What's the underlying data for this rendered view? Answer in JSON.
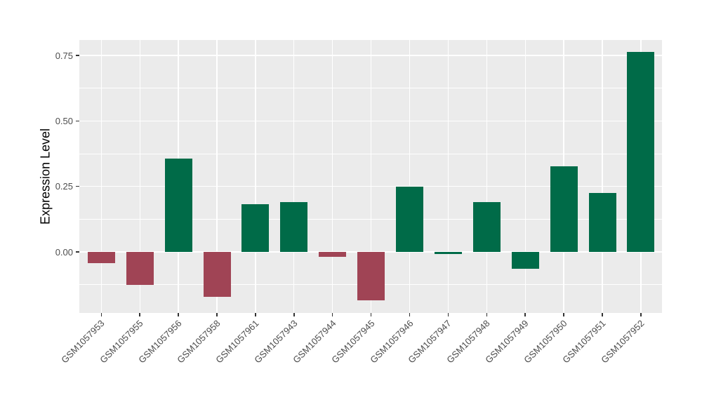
{
  "figure": {
    "background": "#ffffff",
    "panel_bg": "#EBEBEB",
    "gridline_color": "#FFFFFF",
    "tick_color": "#333333",
    "tick_label_color": "#4D4D4D",
    "axis_title_color": "#000000"
  },
  "chart_data": {
    "type": "bar",
    "title": "",
    "xlabel": "",
    "ylabel": "Expression Level",
    "legend": "none",
    "grid": "major and minor horizontal white lines, vertical white line at each category",
    "panel_bg": "#EBEBEB",
    "categories": [
      "GSM1057953",
      "GSM1057955",
      "GSM1057956",
      "GSM1057958",
      "GSM1057961",
      "GSM1057943",
      "GSM1057944",
      "GSM1057945",
      "GSM1057946",
      "GSM1057947",
      "GSM1057948",
      "GSM1057949",
      "GSM1057950",
      "GSM1057951",
      "GSM1057952"
    ],
    "values": [
      -0.043,
      -0.126,
      0.356,
      -0.171,
      0.182,
      0.19,
      -0.018,
      -0.185,
      0.25,
      -0.007,
      0.19,
      -0.064,
      0.327,
      0.225,
      0.764
    ],
    "bar_colors": [
      "#A04455",
      "#A04455",
      "#006B48",
      "#A04455",
      "#006B48",
      "#006B48",
      "#A04455",
      "#A04455",
      "#006B48",
      "#006B48",
      "#006B48",
      "#006B48",
      "#006B48",
      "#006B48",
      "#006B48"
    ],
    "colors": {
      "green": "#006B48",
      "red": "#A04455"
    },
    "ylim": [
      -0.233,
      0.809
    ],
    "y_major_ticks": [
      0,
      0.25,
      0.5,
      0.75
    ],
    "y_tick_labels": [
      "0.00",
      "0.25",
      "0.50",
      "0.75"
    ],
    "y_minor_ticks": [
      -0.125,
      0.125,
      0.375,
      0.625
    ]
  }
}
